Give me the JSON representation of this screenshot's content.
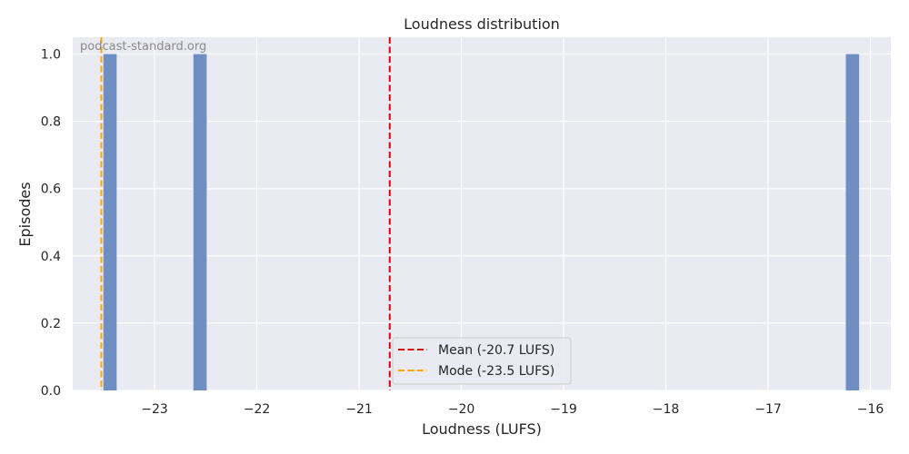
{
  "chart_data": {
    "type": "bar",
    "title": "Loudness distribution",
    "xlabel": "Loudness (LUFS)",
    "ylabel": "Episodes",
    "watermark": "podcast-standard.org",
    "xlim": [
      -23.8,
      -15.8
    ],
    "ylim": [
      0,
      1.05
    ],
    "grid": true,
    "x_ticks": [
      -23,
      -22,
      -21,
      -20,
      -19,
      -18,
      -17,
      -16
    ],
    "x_tick_labels": [
      "−23",
      "−22",
      "−21",
      "−20",
      "−19",
      "−18",
      "−17",
      "−16"
    ],
    "y_ticks": [
      0,
      0.2,
      0.4,
      0.6,
      0.8,
      1.0
    ],
    "y_tick_labels": [
      "0.0",
      "0.2",
      "0.4",
      "0.6",
      "0.8",
      "1.0"
    ],
    "bins": [
      {
        "x_start": -23.5,
        "x_end": -23.37,
        "value": 1
      },
      {
        "x_start": -22.62,
        "x_end": -22.49,
        "value": 1
      },
      {
        "x_start": -16.24,
        "x_end": -16.11,
        "value": 1
      }
    ],
    "bar_color": "#6f8fc2",
    "reference_lines": [
      {
        "label": "Mean (-20.7 LUFS)",
        "x": -20.7,
        "color": "#e00000"
      },
      {
        "label": "Mode (-23.5 LUFS)",
        "x": -23.52,
        "color": "#ffa500"
      }
    ],
    "legend_position": "bottom-center"
  }
}
